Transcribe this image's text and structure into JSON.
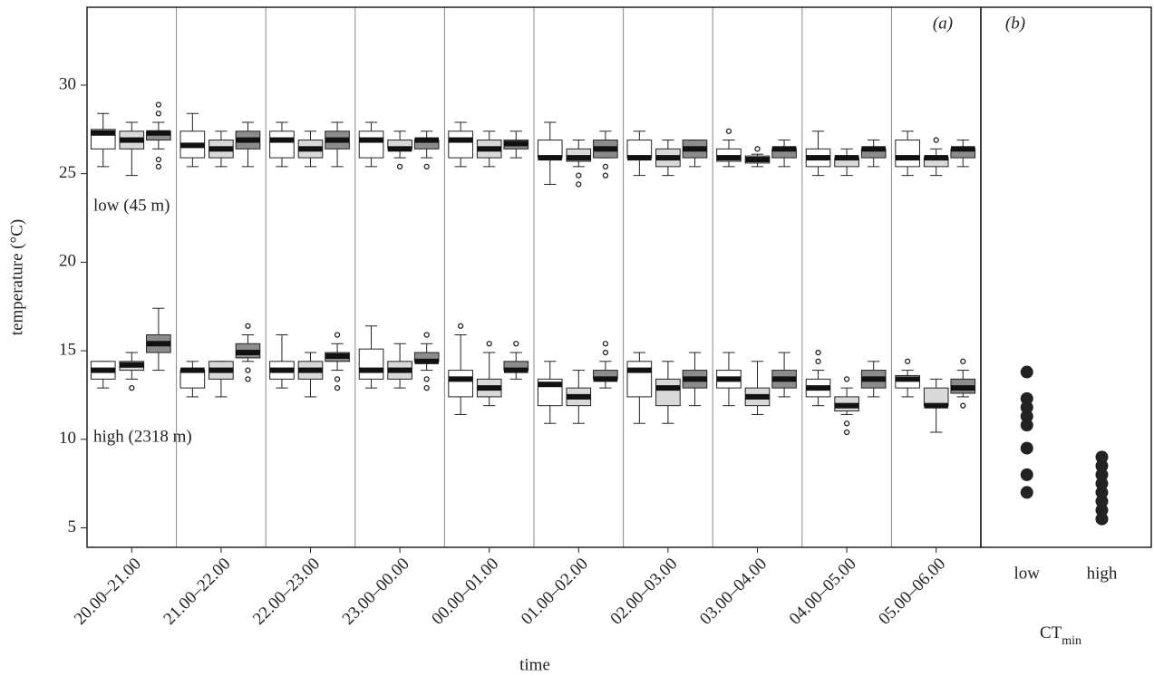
{
  "chart_data": [
    {
      "type": "box",
      "panel_label": "(a)",
      "xlabel": "time",
      "ylabel": "temperature (°C)",
      "categories": [
        "20.00–21.00",
        "21.00–22.00",
        "22.00–23.00",
        "23.00–00.00",
        "00.00–01.00",
        "01.00–02.00",
        "02.00–03.00",
        "03.00–04.00",
        "04.00–05.00",
        "05.00–06.00"
      ],
      "ylim": [
        3.9,
        34.4
      ],
      "yticks": [
        5,
        10,
        15,
        20,
        25,
        30
      ],
      "groups": [
        {
          "label": "low (45 m)",
          "series": [
            {
              "color": "#ffffff",
              "boxes": [
                [
                  25.4,
                  26.4,
                  27.3,
                  27.5,
                  28.4
                ],
                [
                  25.4,
                  25.9,
                  26.6,
                  27.4,
                  28.4
                ],
                [
                  25.4,
                  25.9,
                  26.9,
                  27.4,
                  27.9
                ],
                [
                  25.4,
                  25.9,
                  26.9,
                  27.4,
                  27.9
                ],
                [
                  25.4,
                  25.9,
                  26.9,
                  27.4,
                  27.9
                ],
                [
                  24.4,
                  25.9,
                  25.9,
                  26.9,
                  27.9
                ],
                [
                  24.9,
                  25.9,
                  25.9,
                  26.9,
                  27.4
                ],
                [
                  25.4,
                  25.7,
                  25.9,
                  26.4,
                  26.9
                ],
                [
                  24.9,
                  25.4,
                  25.9,
                  26.4,
                  27.4
                ],
                [
                  24.9,
                  25.4,
                  25.9,
                  26.9,
                  27.4
                ]
              ],
              "fliers": [
                [],
                [],
                [],
                [],
                [],
                [],
                [],
                [
                  27.4
                ],
                [],
                []
              ]
            },
            {
              "color": "#d9d9d9",
              "boxes": [
                [
                  24.9,
                  26.4,
                  26.9,
                  27.4,
                  27.9
                ],
                [
                  25.4,
                  25.9,
                  26.4,
                  26.9,
                  27.4
                ],
                [
                  25.4,
                  25.9,
                  26.4,
                  26.9,
                  27.4
                ],
                [
                  25.9,
                  26.4,
                  26.4,
                  26.9,
                  27.4
                ],
                [
                  25.4,
                  25.9,
                  26.4,
                  26.9,
                  27.4
                ],
                [
                  25.4,
                  25.7,
                  25.9,
                  26.4,
                  26.9
                ],
                [
                  24.9,
                  25.4,
                  25.9,
                  26.4,
                  26.9
                ],
                [
                  25.4,
                  25.6,
                  25.8,
                  26.0,
                  26.1
                ],
                [
                  24.9,
                  25.4,
                  25.9,
                  25.9,
                  26.4
                ],
                [
                  24.9,
                  25.4,
                  25.9,
                  25.9,
                  26.4
                ]
              ],
              "fliers": [
                [],
                [],
                [],
                [
                  25.4
                ],
                [],
                [
                  24.9,
                  24.4
                ],
                [],
                [
                  26.4
                ],
                [],
                [
                  26.9
                ]
              ]
            },
            {
              "color": "#8c8c8c",
              "boxes": [
                [
                  26.4,
                  26.9,
                  27.3,
                  27.4,
                  27.9
                ],
                [
                  25.4,
                  26.4,
                  26.9,
                  27.4,
                  27.9
                ],
                [
                  25.4,
                  26.4,
                  26.9,
                  27.4,
                  27.9
                ],
                [
                  25.9,
                  26.4,
                  26.9,
                  26.9,
                  27.4
                ],
                [
                  25.9,
                  26.4,
                  26.7,
                  26.9,
                  27.4
                ],
                [
                  25.9,
                  25.9,
                  26.4,
                  26.9,
                  27.4
                ],
                [
                  25.4,
                  25.9,
                  26.4,
                  26.9,
                  26.9
                ],
                [
                  25.4,
                  25.9,
                  26.4,
                  26.4,
                  26.9
                ],
                [
                  25.4,
                  25.9,
                  26.4,
                  26.4,
                  26.9
                ],
                [
                  25.4,
                  25.9,
                  26.4,
                  26.4,
                  26.9
                ]
              ],
              "fliers": [
                [
                  28.9,
                  28.4,
                  25.8,
                  25.4
                ],
                [],
                [],
                [
                  25.4
                ],
                [],
                [
                  25.4,
                  24.9
                ],
                [],
                [],
                [],
                []
              ]
            }
          ]
        },
        {
          "label": "high (2318 m)",
          "series": [
            {
              "color": "#ffffff",
              "boxes": [
                [
                  12.9,
                  13.4,
                  13.9,
                  14.4,
                  14.4
                ],
                [
                  12.4,
                  12.9,
                  13.9,
                  13.9,
                  14.4
                ],
                [
                  12.9,
                  13.4,
                  13.9,
                  14.4,
                  15.9
                ],
                [
                  12.9,
                  13.4,
                  13.9,
                  15.1,
                  16.4
                ],
                [
                  11.4,
                  12.4,
                  13.4,
                  13.9,
                  15.9
                ],
                [
                  10.9,
                  11.9,
                  13.1,
                  13.4,
                  14.4
                ],
                [
                  10.9,
                  12.4,
                  13.9,
                  14.4,
                  14.9
                ],
                [
                  11.9,
                  12.9,
                  13.4,
                  13.9,
                  14.9
                ],
                [
                  11.9,
                  12.4,
                  12.9,
                  13.4,
                  13.9
                ],
                [
                  12.4,
                  12.9,
                  13.4,
                  13.6,
                  13.9
                ]
              ],
              "fliers": [
                [],
                [],
                [],
                [],
                [
                  16.4
                ],
                [],
                [],
                [],
                [
                  14.4,
                  14.9
                ],
                [
                  14.4
                ]
              ]
            },
            {
              "color": "#d9d9d9",
              "boxes": [
                [
                  13.4,
                  13.9,
                  14.2,
                  14.4,
                  14.9
                ],
                [
                  12.4,
                  13.4,
                  13.9,
                  14.4,
                  14.4
                ],
                [
                  12.4,
                  13.4,
                  13.9,
                  14.4,
                  14.9
                ],
                [
                  12.9,
                  13.4,
                  13.9,
                  14.4,
                  15.4
                ],
                [
                  11.9,
                  12.4,
                  12.9,
                  13.4,
                  14.9
                ],
                [
                  10.9,
                  11.9,
                  12.4,
                  12.9,
                  13.9
                ],
                [
                  10.9,
                  11.9,
                  12.9,
                  13.4,
                  14.4
                ],
                [
                  11.4,
                  11.9,
                  12.4,
                  12.9,
                  14.4
                ],
                [
                  11.4,
                  11.6,
                  11.9,
                  12.4,
                  12.9
                ],
                [
                  10.4,
                  11.9,
                  11.9,
                  12.9,
                  13.4
                ]
              ],
              "fliers": [
                [
                  12.9
                ],
                [],
                [],
                [],
                [
                  15.4
                ],
                [],
                [],
                [],
                [
                  13.4,
                  10.9,
                  10.4
                ],
                []
              ]
            },
            {
              "color": "#8c8c8c",
              "boxes": [
                [
                  13.9,
                  14.9,
                  15.4,
                  15.9,
                  17.4
                ],
                [
                  14.4,
                  14.6,
                  14.9,
                  15.4,
                  15.9
                ],
                [
                  13.9,
                  14.4,
                  14.7,
                  14.9,
                  15.4
                ],
                [
                  13.9,
                  14.4,
                  14.4,
                  14.9,
                  15.4
                ],
                [
                  13.4,
                  13.9,
                  13.9,
                  14.4,
                  14.9
                ],
                [
                  12.9,
                  13.4,
                  13.4,
                  13.9,
                  14.4
                ],
                [
                  11.9,
                  12.9,
                  13.4,
                  13.9,
                  14.9
                ],
                [
                  12.4,
                  12.9,
                  13.4,
                  13.9,
                  14.9
                ],
                [
                  12.4,
                  12.9,
                  13.4,
                  13.9,
                  14.4
                ],
                [
                  12.4,
                  12.6,
                  12.9,
                  13.4,
                  13.9
                ]
              ],
              "fliers": [
                [],
                [
                  16.4,
                  13.9,
                  13.4
                ],
                [
                  15.9,
                  13.4,
                  12.9
                ],
                [
                  15.9,
                  13.4,
                  12.9
                ],
                [
                  15.4
                ],
                [
                  15.4,
                  14.9
                ],
                [],
                [],
                [],
                [
                  14.4,
                  11.9
                ]
              ]
            }
          ]
        }
      ]
    },
    {
      "type": "strip",
      "panel_label": "(b)",
      "xlabel": {
        "text": "CT",
        "subscript": "min"
      },
      "categories": [
        "low",
        "high"
      ],
      "ylim": [
        3.9,
        34.4
      ],
      "color": "#222222",
      "values": [
        [
          13.8,
          12.3,
          11.8,
          11.3,
          10.8,
          9.5,
          8,
          7
        ],
        [
          9,
          8.5,
          8,
          7.5,
          7,
          6.5,
          6,
          5.5
        ]
      ]
    }
  ]
}
